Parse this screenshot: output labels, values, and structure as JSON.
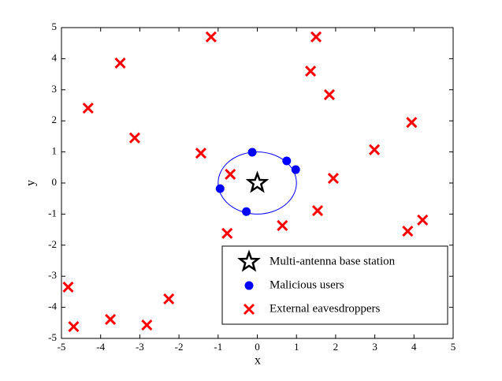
{
  "chart_data": {
    "type": "scatter",
    "xlabel": "x",
    "ylabel": "y",
    "xlim": [
      -5,
      5
    ],
    "ylim": [
      -5,
      5
    ],
    "xticks": [
      -5,
      -4,
      -3,
      -2,
      -1,
      0,
      1,
      2,
      3,
      4,
      5
    ],
    "yticks": [
      -5,
      -4,
      -3,
      -2,
      -1,
      0,
      1,
      2,
      3,
      4,
      5
    ],
    "circle_radius": 1,
    "series": [
      {
        "name": "Multi-antenna base station",
        "marker": "star",
        "color": "#000000",
        "x": [
          0
        ],
        "y": [
          0
        ]
      },
      {
        "name": "Malicious users",
        "marker": "dot",
        "color": "#0000ff",
        "x": [
          -0.13,
          0.75,
          0.98,
          -0.95,
          -0.28
        ],
        "y": [
          0.99,
          0.71,
          0.43,
          -0.18,
          -0.92
        ]
      },
      {
        "name": "External eavesdroppers",
        "marker": "cross",
        "color": "#ff0000",
        "x": [
          -1.18,
          1.5,
          -3.5,
          1.36,
          1.84,
          -4.32,
          -3.13,
          3.94,
          -1.44,
          2.99,
          -0.69,
          1.94,
          1.54,
          0.64,
          -0.77,
          3.84,
          4.22,
          -4.83,
          -2.26,
          -4.69,
          -3.75,
          -2.82
        ],
        "y": [
          4.7,
          4.7,
          3.86,
          3.6,
          2.84,
          2.41,
          1.45,
          1.95,
          0.96,
          1.07,
          0.28,
          0.15,
          -0.89,
          -1.37,
          -1.62,
          -1.55,
          -1.19,
          -3.35,
          -3.73,
          -4.62,
          -4.39,
          -4.57
        ]
      }
    ]
  }
}
